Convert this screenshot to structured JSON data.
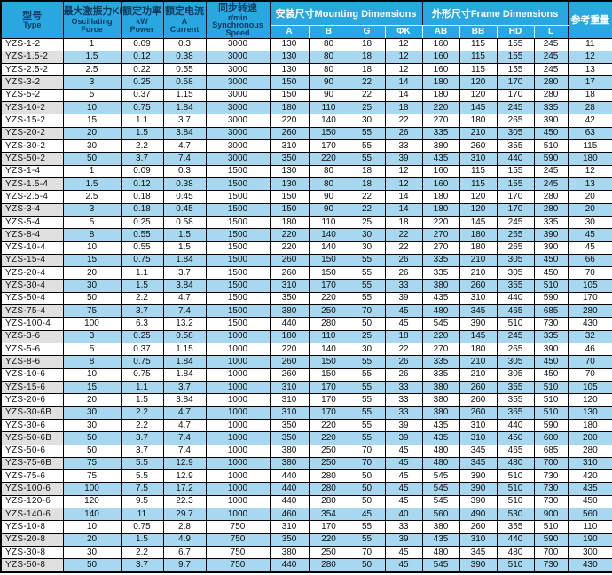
{
  "colors": {
    "header_bg": "#29a7e0",
    "row_alt_bg": "#a8d8f0",
    "type_alt_bg": "#e0e0e0",
    "grid": "#000000",
    "header_text_dark": "#0d3a5e",
    "header_text_light": "#ffffff"
  },
  "table": {
    "header": {
      "type_zh": "型号",
      "type_en": "Type",
      "force_zh": "最大激振力KN",
      "force_en1": "Oscillating",
      "force_en2": "Force",
      "power_zh": "额定功率",
      "power_en1": "kW",
      "power_en2": "Power",
      "current_zh": "额定电流",
      "current_en1": "A",
      "current_en2": "Current",
      "speed_zh": "同步转速",
      "speed_en1": "r/min",
      "speed_en2": "Synchronous",
      "speed_en3": "Speed",
      "mounting": "安装尺寸Mounting Dimensions",
      "frame": "外形尺寸Frame Dimensions",
      "weight": "参考重量",
      "dim_cols": [
        "A",
        "B",
        "G",
        "ΦK",
        "AB",
        "BB",
        "HD",
        "L"
      ]
    },
    "rows": [
      [
        "YZS-1-2",
        "1",
        "0.09",
        "0.3",
        "3000",
        "130",
        "80",
        "18",
        "12",
        "160",
        "115",
        "155",
        "245",
        "11"
      ],
      [
        "YZS-1.5-2",
        "1.5",
        "0.12",
        "0.38",
        "3000",
        "130",
        "80",
        "18",
        "12",
        "160",
        "115",
        "155",
        "245",
        "12"
      ],
      [
        "YZS-2.5-2",
        "2.5",
        "0.22",
        "0.55",
        "3000",
        "130",
        "80",
        "18",
        "12",
        "160",
        "115",
        "155",
        "245",
        "13"
      ],
      [
        "YZS-3-2",
        "3",
        "0.25",
        "0.58",
        "3000",
        "150",
        "90",
        "22",
        "14",
        "180",
        "120",
        "170",
        "280",
        "17"
      ],
      [
        "YZS-5-2",
        "5",
        "0.37",
        "1.15",
        "3000",
        "150",
        "90",
        "22",
        "14",
        "180",
        "120",
        "170",
        "280",
        "18"
      ],
      [
        "YZS-10-2",
        "10",
        "0.75",
        "1.84",
        "3000",
        "180",
        "110",
        "25",
        "18",
        "220",
        "145",
        "245",
        "335",
        "28"
      ],
      [
        "YZS-15-2",
        "15",
        "1.1",
        "3.7",
        "3000",
        "220",
        "140",
        "30",
        "22",
        "270",
        "180",
        "265",
        "390",
        "42"
      ],
      [
        "YZS-20-2",
        "20",
        "1.5",
        "3.84",
        "3000",
        "260",
        "150",
        "55",
        "26",
        "335",
        "210",
        "305",
        "450",
        "63"
      ],
      [
        "YZS-30-2",
        "30",
        "2.2",
        "4.7",
        "3000",
        "310",
        "170",
        "55",
        "33",
        "380",
        "260",
        "355",
        "510",
        "115"
      ],
      [
        "YZS-50-2",
        "50",
        "3.7",
        "7.4",
        "3000",
        "350",
        "220",
        "55",
        "39",
        "435",
        "310",
        "440",
        "590",
        "180"
      ],
      [
        "YZS-1-4",
        "1",
        "0.09",
        "0.3",
        "1500",
        "130",
        "80",
        "18",
        "12",
        "160",
        "115",
        "155",
        "245",
        "12"
      ],
      [
        "YZS-1.5-4",
        "1.5",
        "0.12",
        "0.38",
        "1500",
        "130",
        "80",
        "18",
        "12",
        "160",
        "115",
        "155",
        "245",
        "13"
      ],
      [
        "YZS-2.5-4",
        "2.5",
        "0.18",
        "0.45",
        "1500",
        "150",
        "90",
        "22",
        "14",
        "180",
        "120",
        "170",
        "280",
        "20"
      ],
      [
        "YZS-3-4",
        "3",
        "0.18",
        "0.45",
        "1500",
        "150",
        "90",
        "22",
        "14",
        "180",
        "120",
        "170",
        "280",
        "20"
      ],
      [
        "YZS-5-4",
        "5",
        "0.25",
        "0.58",
        "1500",
        "180",
        "110",
        "25",
        "18",
        "220",
        "145",
        "245",
        "335",
        "30"
      ],
      [
        "YZS-8-4",
        "8",
        "0.55",
        "1.5",
        "1500",
        "220",
        "140",
        "30",
        "22",
        "270",
        "180",
        "265",
        "390",
        "45"
      ],
      [
        "YZS-10-4",
        "10",
        "0.55",
        "1.5",
        "1500",
        "220",
        "140",
        "30",
        "22",
        "270",
        "180",
        "265",
        "390",
        "45"
      ],
      [
        "YZS-15-4",
        "15",
        "0.75",
        "1.84",
        "1500",
        "260",
        "150",
        "55",
        "26",
        "335",
        "210",
        "305",
        "450",
        "66"
      ],
      [
        "YZS-20-4",
        "20",
        "1.1",
        "3.7",
        "1500",
        "260",
        "150",
        "55",
        "26",
        "335",
        "210",
        "305",
        "450",
        "70"
      ],
      [
        "YZS-30-4",
        "30",
        "1.5",
        "3.84",
        "1500",
        "310",
        "170",
        "55",
        "33",
        "380",
        "260",
        "355",
        "510",
        "105"
      ],
      [
        "YZS-50-4",
        "50",
        "2.2",
        "4.7",
        "1500",
        "350",
        "220",
        "55",
        "39",
        "435",
        "310",
        "440",
        "590",
        "170"
      ],
      [
        "YZS-75-4",
        "75",
        "3.7",
        "7.4",
        "1500",
        "380",
        "250",
        "70",
        "45",
        "480",
        "345",
        "465",
        "685",
        "280"
      ],
      [
        "YZS-100-4",
        "100",
        "6.3",
        "13.2",
        "1500",
        "440",
        "280",
        "50",
        "45",
        "545",
        "390",
        "510",
        "730",
        "430"
      ],
      [
        "YZS-3-6",
        "3",
        "0.25",
        "0.58",
        "1000",
        "180",
        "110",
        "25",
        "18",
        "220",
        "145",
        "245",
        "335",
        "32"
      ],
      [
        "YZS-5-6",
        "5",
        "0.37",
        "1.15",
        "1000",
        "220",
        "140",
        "30",
        "22",
        "270",
        "180",
        "265",
        "390",
        "46"
      ],
      [
        "YZS-8-6",
        "8",
        "0.75",
        "1.84",
        "1000",
        "260",
        "150",
        "55",
        "26",
        "335",
        "210",
        "305",
        "450",
        "70"
      ],
      [
        "YZS-10-6",
        "10",
        "0.75",
        "1.84",
        "1000",
        "260",
        "150",
        "55",
        "26",
        "335",
        "210",
        "305",
        "450",
        "70"
      ],
      [
        "YZS-15-6",
        "15",
        "1.1",
        "3.7",
        "1000",
        "310",
        "170",
        "55",
        "33",
        "380",
        "260",
        "355",
        "510",
        "105"
      ],
      [
        "YZS-20-6",
        "20",
        "1.5",
        "3.84",
        "1000",
        "310",
        "170",
        "55",
        "33",
        "380",
        "260",
        "355",
        "510",
        "120"
      ],
      [
        "YZS-30-6B",
        "30",
        "2.2",
        "4.7",
        "1000",
        "310",
        "170",
        "55",
        "33",
        "380",
        "260",
        "365",
        "510",
        "130"
      ],
      [
        "YZS-30-6",
        "30",
        "2.2",
        "4.7",
        "1000",
        "350",
        "220",
        "55",
        "39",
        "435",
        "310",
        "440",
        "590",
        "180"
      ],
      [
        "YZS-50-6B",
        "50",
        "3.7",
        "7.4",
        "1000",
        "350",
        "220",
        "55",
        "39",
        "435",
        "310",
        "450",
        "600",
        "200"
      ],
      [
        "YZS-50-6",
        "50",
        "3.7",
        "7.4",
        "1000",
        "380",
        "250",
        "70",
        "45",
        "480",
        "345",
        "465",
        "685",
        "280"
      ],
      [
        "YZS-75-6B",
        "75",
        "5.5",
        "12.9",
        "1000",
        "380",
        "250",
        "70",
        "45",
        "480",
        "345",
        "480",
        "700",
        "310"
      ],
      [
        "YZS-75-6",
        "75",
        "5.5",
        "12.9",
        "1000",
        "440",
        "280",
        "50",
        "45",
        "545",
        "390",
        "510",
        "730",
        "420"
      ],
      [
        "YZS-100-6",
        "100",
        "7.5",
        "17.2",
        "1000",
        "440",
        "280",
        "50",
        "45",
        "545",
        "390",
        "510",
        "730",
        "435"
      ],
      [
        "YZS-120-6",
        "120",
        "9.5",
        "22.3",
        "1000",
        "440",
        "280",
        "50",
        "45",
        "545",
        "390",
        "510",
        "730",
        "450"
      ],
      [
        "YZS-140-6",
        "140",
        "11",
        "29.7",
        "1000",
        "460",
        "354",
        "45",
        "40",
        "560",
        "490",
        "530",
        "900",
        "560"
      ],
      [
        "YZS-10-8",
        "10",
        "0.75",
        "2.8",
        "750",
        "310",
        "170",
        "55",
        "33",
        "380",
        "260",
        "355",
        "510",
        "110"
      ],
      [
        "YZS-20-8",
        "20",
        "1.5",
        "4.9",
        "750",
        "350",
        "220",
        "55",
        "39",
        "435",
        "310",
        "440",
        "590",
        "190"
      ],
      [
        "YZS-30-8",
        "30",
        "2.2",
        "6.7",
        "750",
        "380",
        "250",
        "70",
        "45",
        "480",
        "345",
        "480",
        "700",
        "300"
      ],
      [
        "YZS-50-8",
        "50",
        "3.7",
        "9.7",
        "750",
        "440",
        "280",
        "50",
        "45",
        "545",
        "390",
        "510",
        "730",
        "430"
      ]
    ]
  }
}
